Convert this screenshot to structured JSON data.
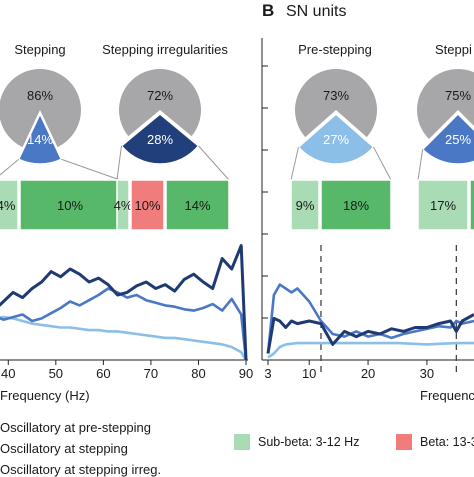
{
  "panel_b": {
    "letter": "B",
    "title": "SN units"
  },
  "pies": [
    {
      "title": "Stepping",
      "big_label": "86%",
      "small_label": "14%",
      "small_fraction": 0.14,
      "small_color": "#4a78c4",
      "bars": [
        {
          "label": "4%",
          "color": "#a9dbb4"
        },
        {
          "label": "10%",
          "color": "#58b86a"
        }
      ]
    },
    {
      "title": "Stepping irregularities",
      "big_label": "72%",
      "small_label": "28%",
      "small_fraction": 0.28,
      "small_color": "#213f7a",
      "bars": [
        {
          "label": "4%",
          "color": "#a9dbb4"
        },
        {
          "label": "10%",
          "color": "#f07c7c"
        },
        {
          "label": "14%",
          "color": "#58b86a"
        }
      ]
    },
    {
      "title": "Pre-stepping",
      "big_label": "73%",
      "small_label": "27%",
      "small_fraction": 0.27,
      "small_color": "#8cbfe8",
      "bars": [
        {
          "label": "9%",
          "color": "#a9dbb4"
        },
        {
          "label": "18%",
          "color": "#58b86a"
        }
      ]
    },
    {
      "title": "Steppi",
      "big_label": "75%",
      "small_label": "25%",
      "small_fraction": 0.25,
      "small_color": "#4a78c4",
      "bars": [
        {
          "label": "17%",
          "color": "#a9dbb4"
        },
        {
          "label": "",
          "color": "#58b86a"
        }
      ]
    }
  ],
  "chart_data": [
    {
      "type": "line",
      "xlabel": "Frequency (Hz)",
      "xticks": [
        40,
        50,
        60,
        70,
        80,
        90
      ],
      "xlim": [
        33,
        90
      ],
      "ylim": [
        0,
        1
      ],
      "series": [
        {
          "name": "Oscillatory at pre-stepping",
          "color": "#8cbfe8",
          "x": [
            33,
            35,
            37,
            39,
            41,
            43,
            45,
            47,
            49,
            51,
            53,
            55,
            57,
            59,
            61,
            63,
            65,
            67,
            69,
            71,
            73,
            75,
            77,
            79,
            81,
            83,
            85,
            87,
            89,
            90
          ],
          "y": [
            0.34,
            0.33,
            0.32,
            0.33,
            0.32,
            0.3,
            0.28,
            0.27,
            0.26,
            0.25,
            0.25,
            0.24,
            0.23,
            0.23,
            0.22,
            0.22,
            0.21,
            0.2,
            0.19,
            0.18,
            0.17,
            0.17,
            0.16,
            0.15,
            0.14,
            0.13,
            0.12,
            0.1,
            0.06,
            0.0
          ]
        },
        {
          "name": "Oscillatory at stepping",
          "color": "#4a78c4",
          "x": [
            33,
            35,
            37,
            39,
            41,
            43,
            45,
            47,
            49,
            51,
            53,
            55,
            57,
            59,
            61,
            63,
            65,
            67,
            69,
            71,
            73,
            75,
            77,
            79,
            81,
            83,
            85,
            87,
            89,
            90
          ],
          "y": [
            0.3,
            0.36,
            0.34,
            0.31,
            0.33,
            0.35,
            0.3,
            0.32,
            0.36,
            0.4,
            0.45,
            0.42,
            0.46,
            0.5,
            0.55,
            0.52,
            0.48,
            0.5,
            0.46,
            0.44,
            0.42,
            0.41,
            0.39,
            0.38,
            0.4,
            0.43,
            0.38,
            0.47,
            0.35,
            0.0
          ]
        },
        {
          "name": "Oscillatory at stepping irreg.",
          "color": "#1f3a73",
          "x": [
            33,
            35,
            37,
            39,
            41,
            43,
            45,
            47,
            49,
            51,
            53,
            55,
            57,
            59,
            61,
            63,
            65,
            67,
            69,
            71,
            73,
            75,
            77,
            79,
            81,
            83,
            85,
            87,
            89,
            90
          ],
          "y": [
            0.4,
            0.44,
            0.38,
            0.45,
            0.52,
            0.48,
            0.55,
            0.6,
            0.68,
            0.64,
            0.7,
            0.66,
            0.6,
            0.63,
            0.58,
            0.5,
            0.52,
            0.57,
            0.6,
            0.55,
            0.58,
            0.53,
            0.62,
            0.66,
            0.6,
            0.55,
            0.78,
            0.7,
            0.88,
            0.0
          ]
        }
      ]
    },
    {
      "type": "line",
      "xlabel": "Frequenc",
      "xticks": [
        3,
        10,
        20,
        30
      ],
      "xlim": [
        3,
        38
      ],
      "ylim": [
        0,
        1
      ],
      "dashed_markers": [
        12,
        35
      ],
      "series": [
        {
          "name": "Oscillatory at pre-stepping",
          "color": "#8cbfe8",
          "x": [
            3,
            4,
            5,
            6,
            8,
            10,
            12,
            15,
            20,
            25,
            30,
            35,
            38
          ],
          "y": [
            0.02,
            0.05,
            0.1,
            0.12,
            0.13,
            0.13,
            0.13,
            0.13,
            0.13,
            0.13,
            0.12,
            0.13,
            0.13
          ]
        },
        {
          "name": "Oscillatory at stepping",
          "color": "#4a78c4",
          "x": [
            3,
            4,
            5,
            6,
            7,
            8,
            10,
            12,
            13,
            14,
            16,
            18,
            20,
            22,
            24,
            26,
            28,
            30,
            32,
            34,
            35,
            36,
            38
          ],
          "y": [
            0.05,
            0.5,
            0.58,
            0.55,
            0.52,
            0.55,
            0.45,
            0.3,
            0.25,
            0.2,
            0.18,
            0.22,
            0.18,
            0.2,
            0.17,
            0.2,
            0.22,
            0.24,
            0.26,
            0.25,
            0.3,
            0.28,
            0.3
          ]
        },
        {
          "name": "Oscillatory at stepping irreg.",
          "color": "#1f3a73",
          "x": [
            3,
            4,
            5,
            6,
            7,
            8,
            10,
            12,
            14,
            16,
            18,
            20,
            22,
            24,
            26,
            28,
            30,
            32,
            34,
            35,
            36,
            38
          ],
          "y": [
            0.05,
            0.32,
            0.3,
            0.25,
            0.3,
            0.28,
            0.3,
            0.28,
            0.12,
            0.22,
            0.18,
            0.22,
            0.2,
            0.24,
            0.22,
            0.25,
            0.25,
            0.28,
            0.3,
            0.22,
            0.3,
            0.35
          ]
        }
      ]
    }
  ],
  "legend_left": [
    {
      "label": "Oscillatory at pre-stepping"
    },
    {
      "label": "Oscillatory at stepping"
    },
    {
      "label": "Oscillatory at stepping irreg."
    }
  ],
  "legend_right": [
    {
      "label": "Sub-beta: 3-12 Hz",
      "color": "#a9dbb4"
    },
    {
      "label": "Beta: 13-3",
      "color": "#f07c7c"
    }
  ]
}
